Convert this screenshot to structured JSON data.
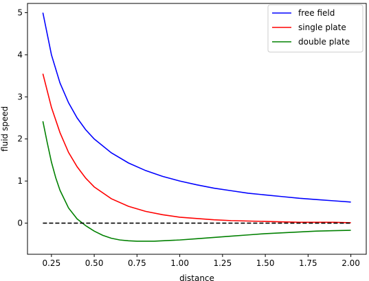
{
  "chart_data": {
    "type": "line",
    "title": "",
    "xlabel": "distance",
    "ylabel": "fluid speed",
    "xlim": [
      0.11,
      2.09
    ],
    "ylim": [
      -0.74,
      5.22
    ],
    "xticks": [
      0.25,
      0.5,
      0.75,
      1.0,
      1.25,
      1.5,
      1.75,
      2.0
    ],
    "xtick_labels": [
      "0.25",
      "0.50",
      "0.75",
      "1.00",
      "1.25",
      "1.50",
      "1.75",
      "2.00"
    ],
    "yticks": [
      0,
      1,
      2,
      3,
      4,
      5
    ],
    "ytick_labels": [
      "0",
      "1",
      "2",
      "3",
      "4",
      "5"
    ],
    "grid": false,
    "legend_position": "top-right",
    "series": [
      {
        "name": "free field",
        "color": "#0000ff",
        "dash": "solid",
        "x": [
          0.2,
          0.25,
          0.3,
          0.35,
          0.4,
          0.45,
          0.5,
          0.6,
          0.7,
          0.8,
          0.9,
          1.0,
          1.1,
          1.2,
          1.3,
          1.4,
          1.5,
          1.6,
          1.7,
          1.8,
          1.9,
          2.0
        ],
        "y": [
          5.0,
          4.0,
          3.33,
          2.86,
          2.5,
          2.22,
          2.0,
          1.67,
          1.43,
          1.25,
          1.11,
          1.0,
          0.91,
          0.83,
          0.77,
          0.71,
          0.67,
          0.63,
          0.59,
          0.56,
          0.53,
          0.5
        ]
      },
      {
        "name": "single plate",
        "color": "#ff0000",
        "dash": "solid",
        "x": [
          0.2,
          0.25,
          0.3,
          0.35,
          0.4,
          0.45,
          0.5,
          0.6,
          0.7,
          0.8,
          0.9,
          1.0,
          1.1,
          1.2,
          1.3,
          1.4,
          1.5,
          1.6,
          1.7,
          1.8,
          1.9,
          2.0
        ],
        "y": [
          3.55,
          2.75,
          2.15,
          1.68,
          1.34,
          1.07,
          0.86,
          0.58,
          0.4,
          0.28,
          0.2,
          0.14,
          0.11,
          0.08,
          0.06,
          0.05,
          0.04,
          0.03,
          0.02,
          0.02,
          0.02,
          0.01
        ]
      },
      {
        "name": "double plate",
        "color": "#008000",
        "dash": "solid",
        "x": [
          0.2,
          0.225,
          0.25,
          0.275,
          0.3,
          0.35,
          0.4,
          0.45,
          0.5,
          0.55,
          0.6,
          0.65,
          0.7,
          0.75,
          0.8,
          0.85,
          0.9,
          1.0,
          1.1,
          1.2,
          1.3,
          1.4,
          1.5,
          1.6,
          1.7,
          1.8,
          1.9,
          2.0
        ],
        "y": [
          2.42,
          1.92,
          1.45,
          1.08,
          0.78,
          0.36,
          0.1,
          -0.06,
          -0.19,
          -0.29,
          -0.36,
          -0.4,
          -0.42,
          -0.43,
          -0.43,
          -0.43,
          -0.42,
          -0.4,
          -0.37,
          -0.34,
          -0.31,
          -0.28,
          -0.25,
          -0.23,
          -0.21,
          -0.19,
          -0.18,
          -0.17
        ]
      },
      {
        "name": "",
        "color": "#000000",
        "dash": "dashed",
        "x": [
          0.2,
          2.0
        ],
        "y": [
          0,
          0
        ]
      }
    ]
  }
}
